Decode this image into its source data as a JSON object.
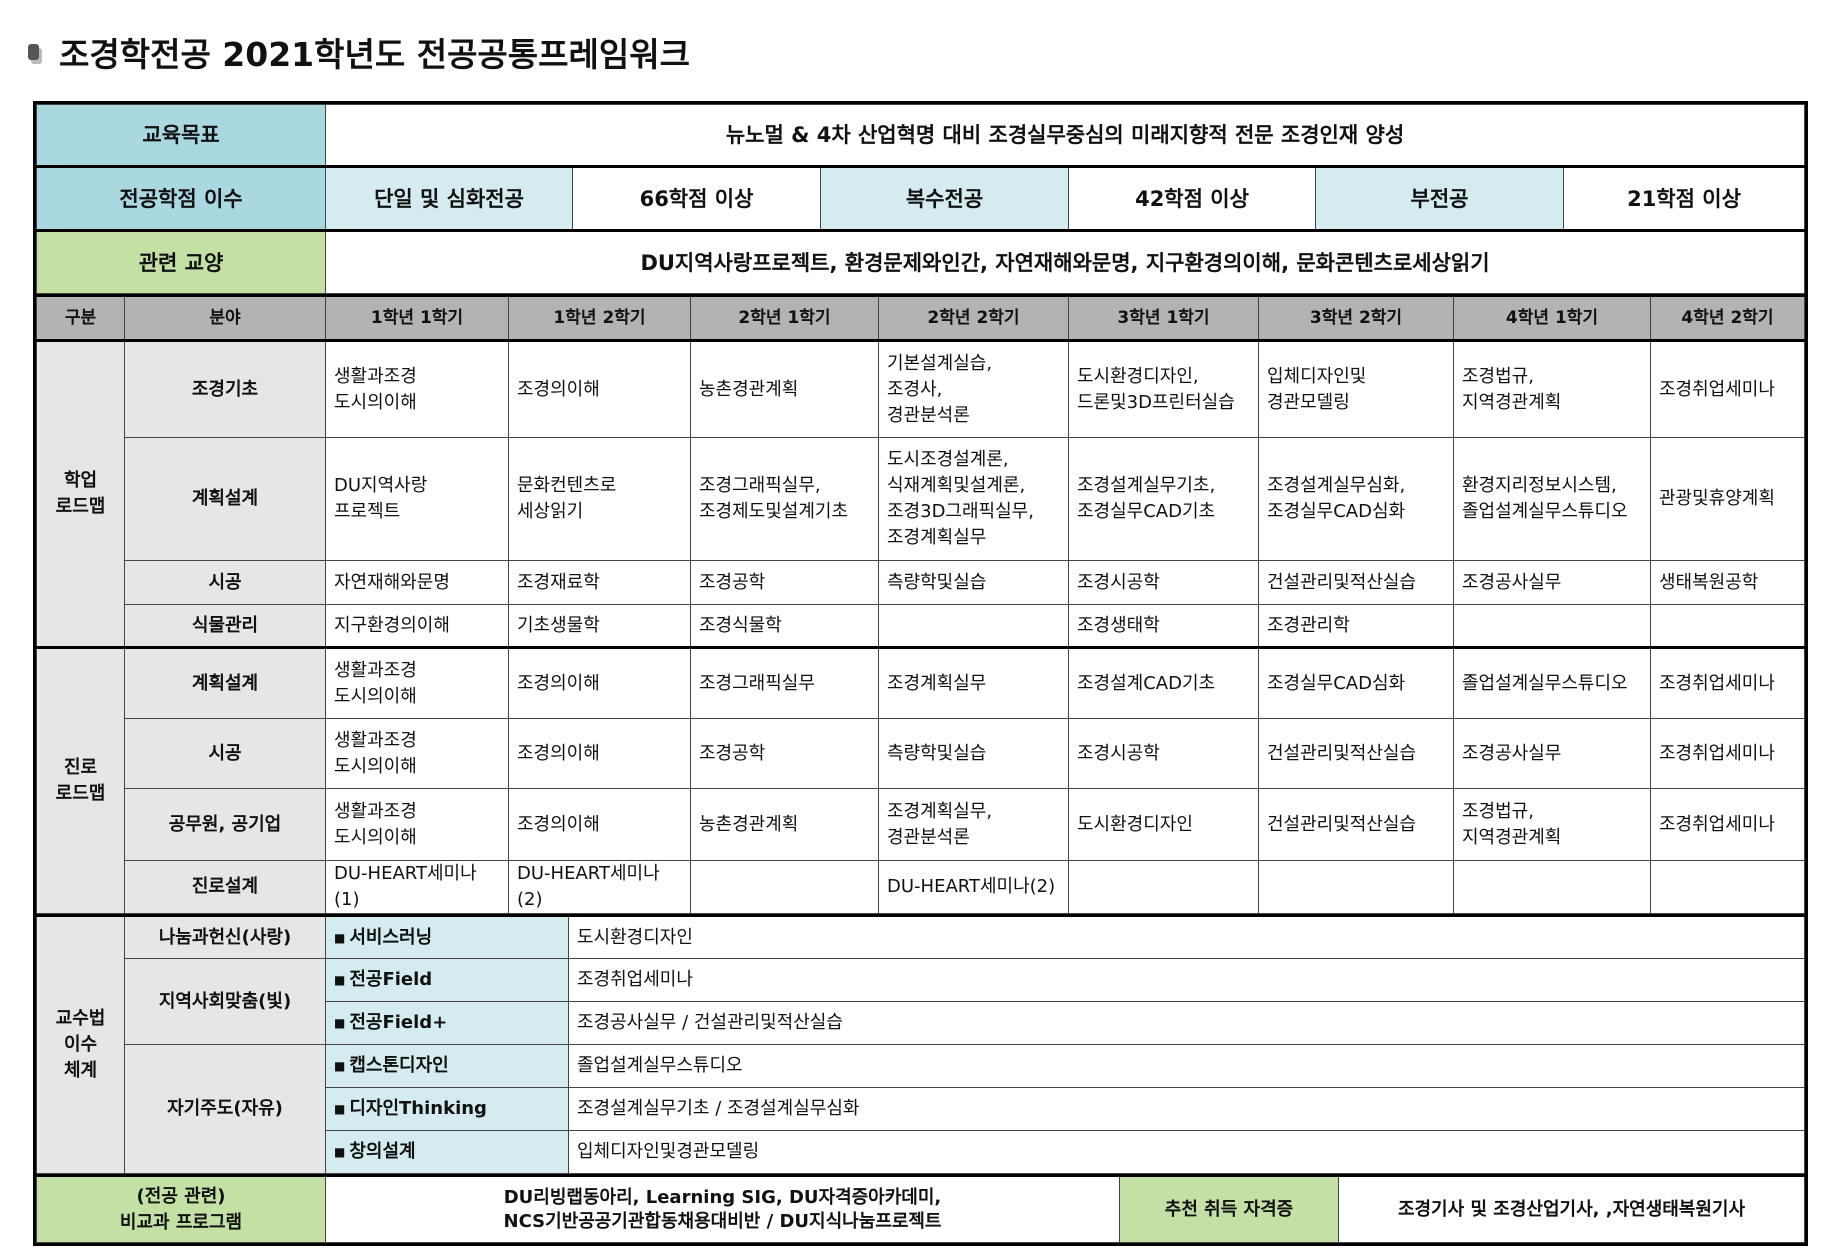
{
  "title": "조경학전공 2021학년도 전공공통프레임워크",
  "goal": {
    "label": "교육목표",
    "value": "뉴노멀 & 4차 산업혁명 대비 조경실무중심의 미래지향적 전문 조경인재 양성"
  },
  "credits": {
    "label": "전공학점 이수",
    "items": [
      {
        "type": "단일 및 심화전공",
        "value": "66학점 이상"
      },
      {
        "type": "복수전공",
        "value": "42학점 이상"
      },
      {
        "type": "부전공",
        "value": "21학점 이상"
      }
    ]
  },
  "liberal": {
    "label": "관련 교양",
    "value": "DU지역사랑프로젝트, 환경문제와인간, 자연재해와문명, 지구환경의이해, 문화콘텐츠로세상읽기"
  },
  "header": [
    "구분",
    "분야",
    "1학년 1학기",
    "1학년 2학기",
    "2학년 1학기",
    "2학년 2학기",
    "3학년 1학기",
    "3학년 2학기",
    "4학년 1학기",
    "4학년 2학기"
  ],
  "sections": [
    {
      "label": "학업\n로드맵",
      "rows": [
        {
          "field": "조경기초",
          "cells": [
            "생활과조경\n도시의이해",
            "조경의이해",
            "농촌경관계획",
            "기본설계실습,\n조경사,\n경관분석론",
            "도시환경디자인,\n드론및3D프린터실습",
            "입체디자인및\n경관모델링",
            "조경법규,\n지역경관계획",
            "조경취업세미나"
          ]
        },
        {
          "field": "계획설계",
          "cells": [
            "DU지역사랑\n프로젝트",
            "문화컨텐츠로\n세상읽기",
            "조경그래픽실무,\n조경제도및설계기초",
            "도시조경설계론,\n식재계획및설계론,\n조경3D그래픽실무,\n조경계획실무",
            "조경설계실무기초,\n조경실무CAD기초",
            "조경설계실무심화,\n조경실무CAD심화",
            "환경지리정보시스템,\n졸업설계실무스튜디오",
            "관광및휴양계획"
          ]
        },
        {
          "field": "시공",
          "cells": [
            "자연재해와문명",
            "조경재료학",
            "조경공학",
            "측량학및실습",
            "조경시공학",
            "건설관리및적산실습",
            "조경공사실무",
            "생태복원공학"
          ]
        },
        {
          "field": "식물관리",
          "cells": [
            "지구환경의이해",
            "기초생물학",
            "조경식물학",
            "",
            "조경생태학",
            "조경관리학",
            "",
            ""
          ]
        }
      ]
    },
    {
      "label": "진로\n로드맵",
      "rows": [
        {
          "field": "계획설계",
          "cells": [
            "생활과조경\n도시의이해",
            "조경의이해",
            "조경그래픽실무",
            "조경계획실무",
            "조경설계CAD기초",
            "조경실무CAD심화",
            "졸업설계실무스튜디오",
            "조경취업세미나"
          ]
        },
        {
          "field": "시공",
          "cells": [
            "생활과조경\n도시의이해",
            "조경의이해",
            "조경공학",
            "측량학및실습",
            "조경시공학",
            "건설관리및적산실습",
            "조경공사실무",
            "조경취업세미나"
          ]
        },
        {
          "field": "공무원, 공기업",
          "cells": [
            "생활과조경\n도시의이해",
            "조경의이해",
            "농촌경관계획",
            "조경계획실무,\n경관분석론",
            "도시환경디자인",
            "건설관리및적산실습",
            "조경법규,\n지역경관계획",
            "조경취업세미나"
          ]
        },
        {
          "field": "진로설계",
          "cells": [
            "DU-HEART세미나(1)",
            "DU-HEART세미나(2)",
            "",
            "DU-HEART세미나(2)",
            "",
            "",
            "",
            ""
          ]
        }
      ]
    }
  ],
  "teaching": {
    "label": "교수법\n이수\n체계",
    "groups": [
      {
        "name": "나눔과헌신(사랑)",
        "items": [
          {
            "method": "서비스러닝",
            "courses": "도시환경디자인"
          }
        ]
      },
      {
        "name": "지역사회맞춤(빛)",
        "items": [
          {
            "method": "전공Field",
            "courses": "조경취업세미나"
          },
          {
            "method": "전공Field+",
            "courses": "조경공사실무  /  건설관리및적산실습"
          }
        ]
      },
      {
        "name": "자기주도(자유)",
        "items": [
          {
            "method": "캡스톤디자인",
            "courses": "졸업설계실무스튜디오"
          },
          {
            "method": "디자인Thinking",
            "courses": "조경설계실무기초  /  조경설계실무심화"
          },
          {
            "method": "창의설계",
            "courses": "입체디자인및경관모델링"
          }
        ]
      }
    ],
    "bullet": "■"
  },
  "extra": {
    "label": "(전공 관련)\n비교과 프로그램",
    "value": "DU리빙랩동아리, Learning SIG, DU자격증아카데미,\nNCS기반공공기관합동채용대비반 / DU지식나눔프로젝트",
    "cert_label": "추천 취득 자격증",
    "cert_value": "조경기사 및 조경산업기사, ,자연생태복원기사"
  },
  "colors": {
    "label_teal": "#a9d8e0",
    "light_teal": "#d4ecf0",
    "green": "#c5e0a5",
    "header_gray": "#b3b3b3",
    "field_gray": "#e6e6e6"
  }
}
